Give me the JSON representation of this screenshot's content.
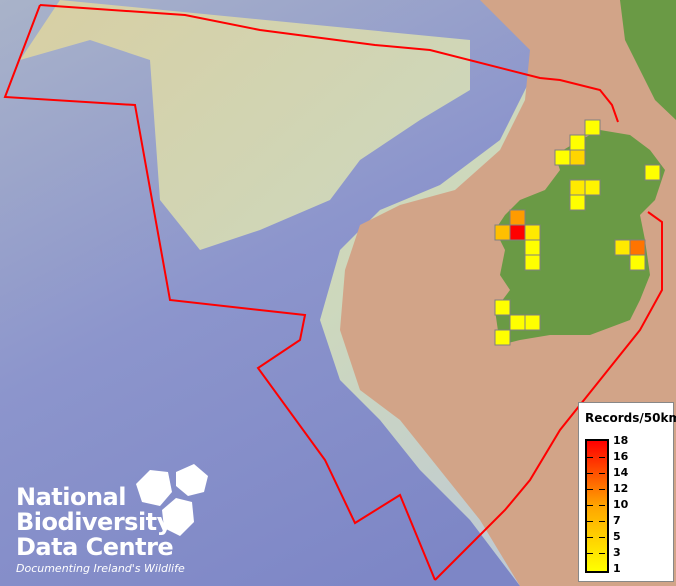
{
  "map": {
    "colors": {
      "sea_deep": "#7d86c8",
      "sea_shelf": "#c9d6b8",
      "land_ireland": "#6a9a45",
      "land_other": "#d2a488",
      "boundary": "#ff0000",
      "cell_border": "#808080"
    },
    "grid_cells": [
      {
        "col": 39,
        "row": 8,
        "records": 1
      },
      {
        "col": 38,
        "row": 9,
        "records": 1
      },
      {
        "col": 37,
        "row": 10,
        "records": 1
      },
      {
        "col": 38,
        "row": 10,
        "records": 5
      },
      {
        "col": 43,
        "row": 11,
        "records": 1
      },
      {
        "col": 38,
        "row": 12,
        "records": 3
      },
      {
        "col": 39,
        "row": 12,
        "records": 2
      },
      {
        "col": 38,
        "row": 13,
        "records": 1
      },
      {
        "col": 34,
        "row": 14,
        "records": 10
      },
      {
        "col": 33,
        "row": 15,
        "records": 7
      },
      {
        "col": 34,
        "row": 15,
        "records": 18
      },
      {
        "col": 35,
        "row": 15,
        "records": 3
      },
      {
        "col": 35,
        "row": 16,
        "records": 1
      },
      {
        "col": 35,
        "row": 17,
        "records": 1
      },
      {
        "col": 41,
        "row": 16,
        "records": 3
      },
      {
        "col": 42,
        "row": 16,
        "records": 12
      },
      {
        "col": 42,
        "row": 17,
        "records": 1
      },
      {
        "col": 33,
        "row": 20,
        "records": 1
      },
      {
        "col": 34,
        "row": 21,
        "records": 1
      },
      {
        "col": 35,
        "row": 21,
        "records": 1
      },
      {
        "col": 33,
        "row": 22,
        "records": 1
      }
    ]
  },
  "legend": {
    "title": "Records/50km",
    "ticks": [
      "18",
      "16",
      "14",
      "12",
      "10",
      "7",
      "5",
      "3",
      "1"
    ],
    "color_min": "#ffff00",
    "color_max": "#ff0000"
  },
  "logo": {
    "line1": "National",
    "line2": "Biodiversity",
    "line3": "Data Centre",
    "tagline": "Documenting Ireland's Wildlife"
  }
}
